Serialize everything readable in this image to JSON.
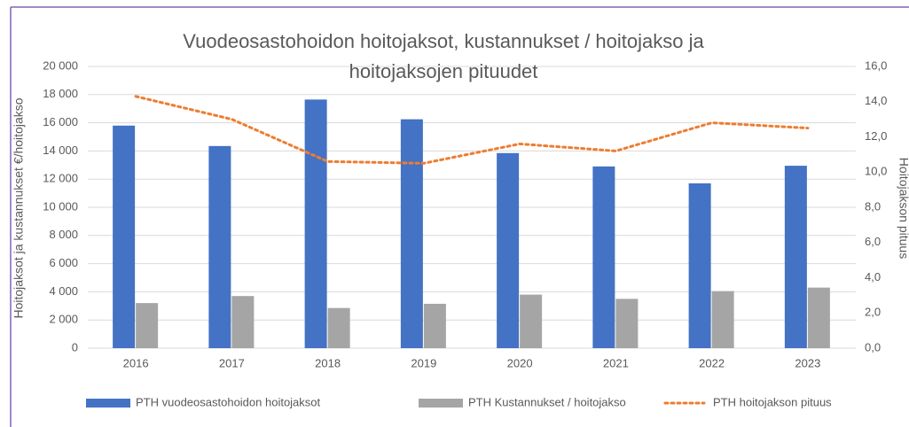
{
  "chart_data": {
    "type": "bar",
    "title": "Vuodeosastohoidon hoitojaksot, kustannukset / hoitojakso ja hoitojaksojen pituudet",
    "y_label": "Hoitojaksot ja kustannukset €/hoitojakso",
    "y2_label": "Hoitojakson pituus",
    "categories": [
      "2016",
      "2017",
      "2018",
      "2019",
      "2020",
      "2021",
      "2022",
      "2023"
    ],
    "series": [
      {
        "name": "PTH vuodeosastohoidon hoitojaksot",
        "type": "bar",
        "color": "#4472c4",
        "values": [
          15800,
          14350,
          17650,
          16250,
          13850,
          12900,
          11700,
          12950
        ]
      },
      {
        "name": "PTH Kustannukset / hoitojakso",
        "type": "bar",
        "color": "#a5a5a5",
        "values": [
          3200,
          3700,
          2850,
          3150,
          3800,
          3500,
          4050,
          4300
        ]
      },
      {
        "name": "PTH hoitojakson pituus",
        "type": "line",
        "color": "#ed7d31",
        "axis": "y2",
        "values": [
          14.3,
          13.0,
          10.6,
          10.5,
          11.6,
          11.2,
          12.8,
          12.5
        ]
      }
    ],
    "ylim": [
      0,
      20000
    ],
    "yticks": [
      0,
      {
        "value": 2000,
        "label": "2 000"
      },
      {
        "value": 4000,
        "label": "4 000"
      },
      {
        "value": 6000,
        "label": "6 000"
      },
      {
        "value": 8000,
        "label": "8 000"
      },
      {
        "value": 10000,
        "label": "10 000"
      },
      {
        "value": 12000,
        "label": "12 000"
      },
      {
        "value": 14000,
        "label": "14 000"
      },
      {
        "value": 16000,
        "label": "16 000"
      },
      {
        "value": 18000,
        "label": "18 000"
      },
      {
        "value": 20000,
        "label": "20 000"
      }
    ],
    "y2lim": [
      0,
      16
    ],
    "y2ticks": [
      {
        "value": 0,
        "label": "0,0"
      },
      {
        "value": 2,
        "label": "2,0"
      },
      {
        "value": 4,
        "label": "4,0"
      },
      {
        "value": 6,
        "label": "6,0"
      },
      {
        "value": 8,
        "label": "8,0"
      },
      {
        "value": 10,
        "label": "10,0"
      },
      {
        "value": 12,
        "label": "12,0"
      },
      {
        "value": 14,
        "label": "14,0"
      },
      {
        "value": 16,
        "label": "16,0"
      }
    ],
    "grid": true,
    "legend": "bottom"
  }
}
